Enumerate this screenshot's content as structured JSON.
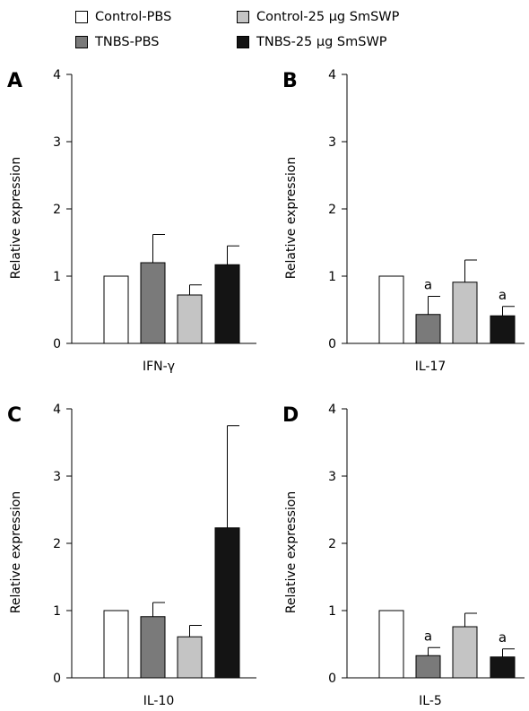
{
  "legend": [
    {
      "name": "Control-PBS",
      "color": "#ffffff"
    },
    {
      "name": "TNBS-PBS",
      "color": "#7a7a7a"
    },
    {
      "name": "Control-25 μg SmSWP",
      "color": "#c4c4c4"
    },
    {
      "name": "TNBS-25 μg SmSWP",
      "color": "#141414"
    }
  ],
  "chart_data": [
    {
      "type": "bar",
      "panel": "A",
      "categories": [
        "Control-PBS",
        "TNBS-PBS",
        "Control-25 μg SmSWP",
        "TNBS-25 μg SmSWP"
      ],
      "values": [
        1.0,
        1.2,
        0.72,
        1.17
      ],
      "errors": [
        0,
        0.42,
        0.15,
        0.28
      ],
      "annotations": [
        "",
        "",
        "",
        ""
      ],
      "xlabel": "IFN-γ",
      "ylabel": "Relative expression",
      "ylim": [
        0,
        4
      ],
      "yticks": [
        "0",
        "1",
        "2",
        "3",
        "4"
      ]
    },
    {
      "type": "bar",
      "panel": "B",
      "categories": [
        "Control-PBS",
        "TNBS-PBS",
        "Control-25 μg SmSWP",
        "TNBS-25 μg SmSWP"
      ],
      "values": [
        1.0,
        0.43,
        0.91,
        0.41
      ],
      "errors": [
        0,
        0.27,
        0.33,
        0.14
      ],
      "annotations": [
        "",
        "a",
        "",
        "a"
      ],
      "xlabel": "IL-17",
      "ylabel": "Relative expression",
      "ylim": [
        0,
        4
      ],
      "yticks": [
        "0",
        "1",
        "2",
        "3",
        "4"
      ]
    },
    {
      "type": "bar",
      "panel": "C",
      "categories": [
        "Control-PBS",
        "TNBS-PBS",
        "Control-25 μg SmSWP",
        "TNBS-25 μg SmSWP"
      ],
      "values": [
        1.0,
        0.91,
        0.61,
        2.23
      ],
      "errors": [
        0,
        0.21,
        0.17,
        1.52
      ],
      "annotations": [
        "",
        "",
        "",
        ""
      ],
      "xlabel": "IL-10",
      "ylabel": "Relative expression",
      "ylim": [
        0,
        4
      ],
      "yticks": [
        "0",
        "1",
        "2",
        "3",
        "4"
      ]
    },
    {
      "type": "bar",
      "panel": "D",
      "categories": [
        "Control-PBS",
        "TNBS-PBS",
        "Control-25 μg SmSWP",
        "TNBS-25 μg SmSWP"
      ],
      "values": [
        1.0,
        0.33,
        0.76,
        0.31
      ],
      "errors": [
        0,
        0.12,
        0.2,
        0.12
      ],
      "annotations": [
        "",
        "a",
        "",
        "a"
      ],
      "xlabel": "IL-5",
      "ylabel": "Relative expression",
      "ylim": [
        0,
        4
      ],
      "yticks": [
        "0",
        "1",
        "2",
        "3",
        "4"
      ]
    }
  ]
}
